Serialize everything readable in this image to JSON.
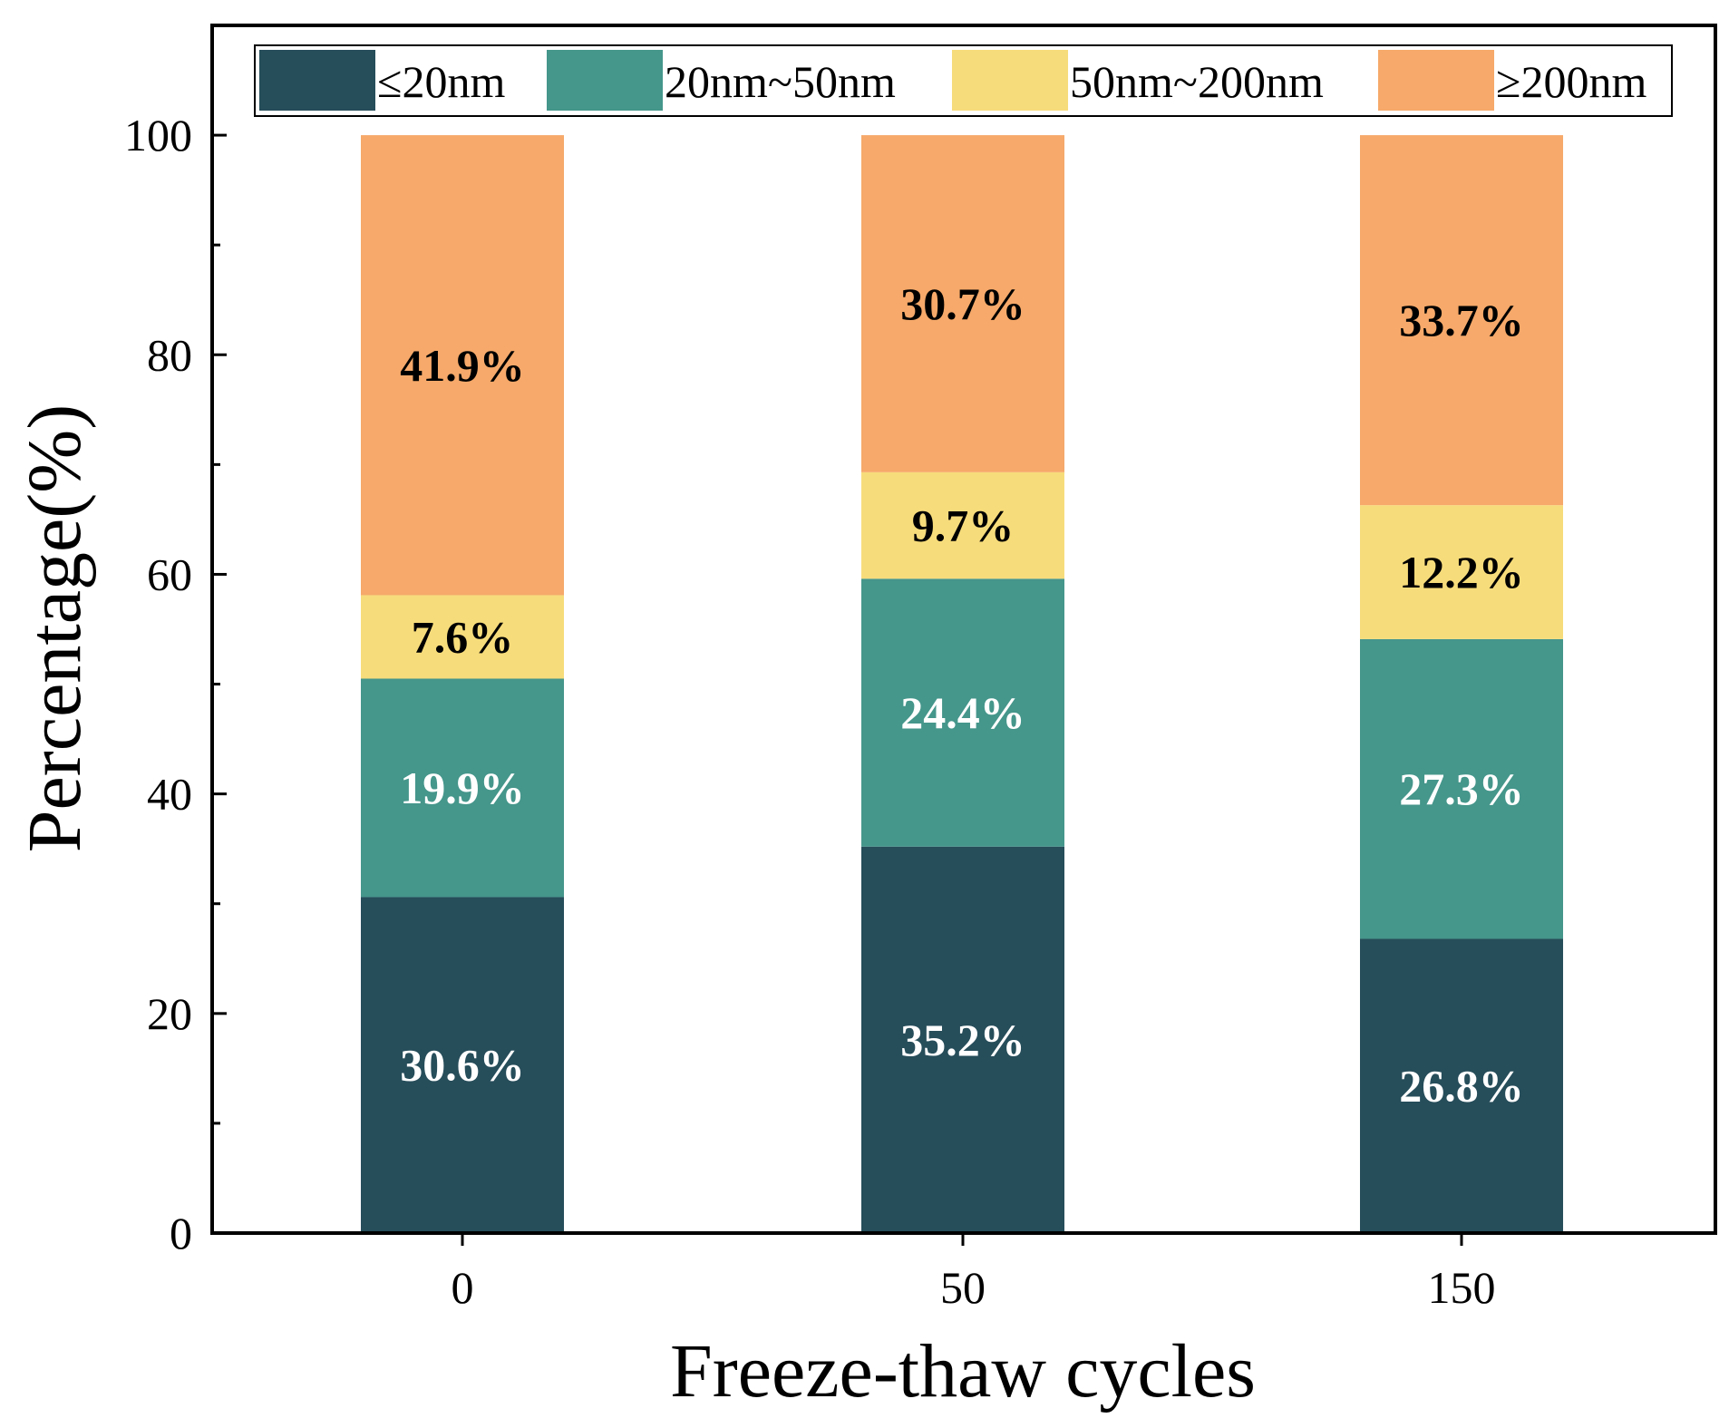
{
  "chart_data": {
    "type": "bar",
    "stacked": true,
    "categories": [
      "0",
      "50",
      "150"
    ],
    "series": [
      {
        "name": "≤20nm",
        "color": "#264d5a",
        "label_color": "#ffffff",
        "values": [
          30.6,
          35.2,
          26.8
        ],
        "labels": [
          "30.6%",
          "35.2%",
          "26.8%"
        ]
      },
      {
        "name": "20nm~50nm",
        "color": "#45968b",
        "label_color": "#ffffff",
        "values": [
          19.9,
          24.4,
          27.3
        ],
        "labels": [
          "19.9%",
          "24.4%",
          "27.3%"
        ]
      },
      {
        "name": "50nm~200nm",
        "color": "#f7dc7b",
        "label_color": "#000000",
        "values": [
          7.6,
          9.7,
          12.2
        ],
        "labels": [
          "7.6%",
          "9.7%",
          "12.2%"
        ]
      },
      {
        "name": "≥200nm",
        "color": "#f6a96a",
        "label_color": "#000000",
        "values": [
          41.9,
          30.7,
          33.7
        ],
        "labels": [
          "41.9%",
          "30.7%",
          "33.7%"
        ]
      }
    ],
    "xlabel": "Freeze-thaw cycles",
    "ylabel": "Percentage(%)",
    "ylim": [
      0,
      110
    ],
    "yticks": [
      0,
      20,
      40,
      60,
      80,
      100
    ],
    "ytick_labels": [
      "0",
      "20",
      "40",
      "60",
      "80",
      "100"
    ],
    "grid": false,
    "legend_position": "top"
  }
}
